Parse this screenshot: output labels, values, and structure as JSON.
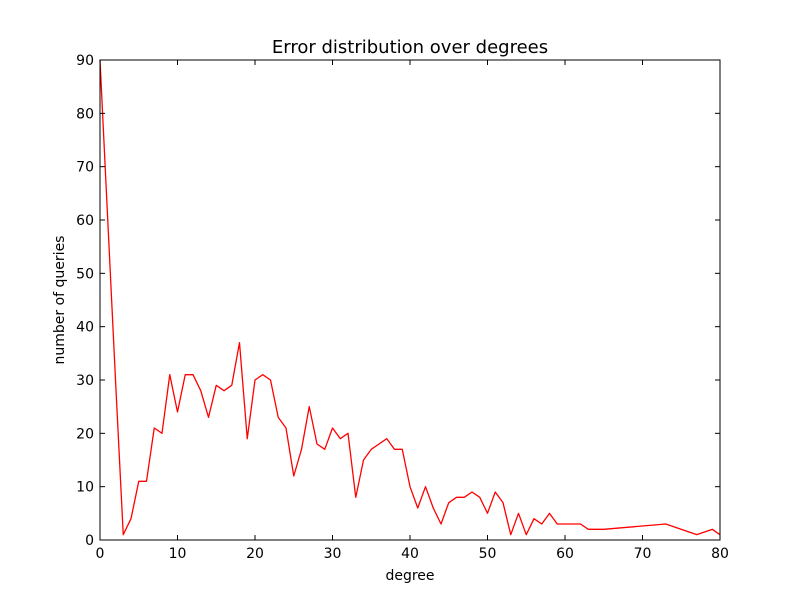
{
  "chart_data": {
    "type": "line",
    "title": "Error distribution over degrees",
    "xlabel": "degree",
    "ylabel": "number of queries",
    "xlim": [
      0,
      80
    ],
    "ylim": [
      0,
      90
    ],
    "xticks": [
      "0",
      "10",
      "20",
      "30",
      "40",
      "50",
      "60",
      "70",
      "80"
    ],
    "yticks": [
      "0",
      "10",
      "20",
      "30",
      "40",
      "50",
      "60",
      "70",
      "80",
      "90"
    ],
    "grid": false,
    "legend": "none",
    "series_color": "#ff0000",
    "series": [
      {
        "x": [
          0,
          1,
          2,
          3,
          4,
          5,
          6,
          7,
          8,
          9,
          10,
          11,
          12,
          13,
          14,
          15,
          16,
          17,
          18,
          19,
          20,
          21,
          22,
          23,
          24,
          25,
          26,
          27,
          28,
          29,
          30,
          31,
          32,
          33,
          34,
          35,
          36,
          37,
          38,
          39,
          40,
          41,
          42,
          43,
          44,
          45,
          46,
          47,
          48,
          49,
          50,
          51,
          52,
          53,
          54,
          55,
          56,
          57,
          58,
          59,
          60,
          61,
          62,
          63,
          64,
          65,
          73,
          77,
          79,
          80
        ],
        "y": [
          90,
          60,
          30,
          1,
          4,
          11,
          11,
          21,
          20,
          31,
          24,
          31,
          31,
          28,
          23,
          29,
          28,
          29,
          37,
          19,
          30,
          31,
          30,
          23,
          21,
          12,
          17,
          25,
          18,
          17,
          21,
          19,
          20,
          8,
          15,
          17,
          18,
          19,
          17,
          17,
          10,
          6,
          10,
          6,
          3,
          7,
          8,
          8,
          9,
          8,
          5,
          9,
          7,
          1,
          5,
          1,
          4,
          3,
          5,
          3,
          3,
          3,
          3,
          2,
          2,
          2,
          3,
          1,
          2,
          1
        ]
      }
    ]
  }
}
